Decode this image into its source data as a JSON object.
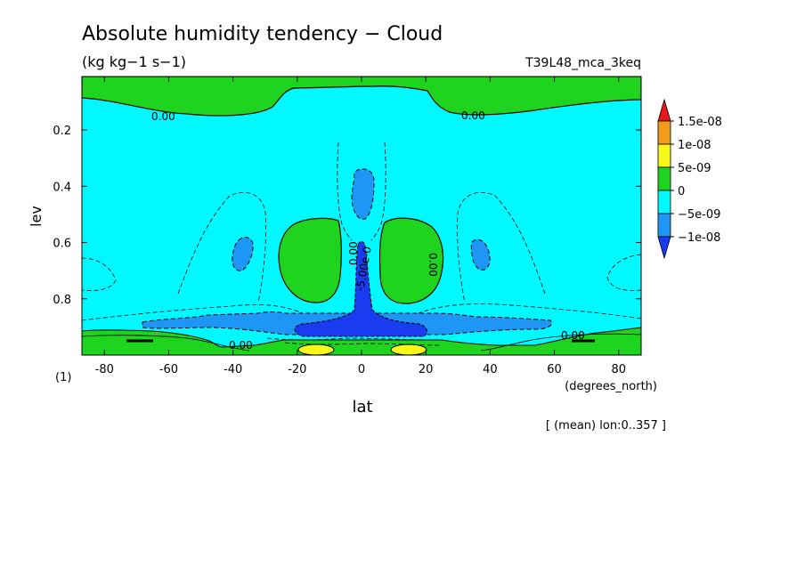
{
  "chart_data": {
    "type": "contour",
    "title": "Absolute humidity tendency − Cloud",
    "units": "(kg kg−1 s−1)",
    "experiment": "T39L48_mca_3keq",
    "xlabel": "lat",
    "xunits": "(degrees_north)",
    "ylabel": "lev",
    "yunits": "(1)",
    "xlim": [
      -87,
      87
    ],
    "ylim": [
      1.0,
      0.01
    ],
    "x_ticks": [
      -80,
      -60,
      -40,
      -20,
      0,
      20,
      40,
      60,
      80
    ],
    "y_ticks": [
      0.2,
      0.4,
      0.6,
      0.8
    ],
    "footnote": "[ (mean) lon:0..357 ]",
    "colorbar": {
      "labels": [
        "1.5e-08",
        "1e-08",
        "5e-09",
        "0",
        "−5e-09",
        "−1e-08"
      ],
      "colors": [
        "#e8161c",
        "#f59b1a",
        "#f7f71c",
        "#1fd41f",
        "#00f8ff",
        "#1e96f5",
        "#1a3cf0"
      ]
    },
    "contour_labels": [
      {
        "text": "0.00",
        "lat": -60,
        "lev": 0.16
      },
      {
        "text": "0.00",
        "lat": 36,
        "lev": 0.145
      },
      {
        "text": "0.00",
        "lat": -5,
        "lev": 0.69
      },
      {
        "text": "0.00",
        "lat": 25,
        "lev": 0.67
      },
      {
        "text": "-5.00e-0",
        "lat": -2,
        "lev": 0.76
      },
      {
        "text": "0.00",
        "lat": -37,
        "lev": 0.965
      },
      {
        "text": "0.00",
        "lat": 67,
        "lev": 0.945
      }
    ]
  }
}
